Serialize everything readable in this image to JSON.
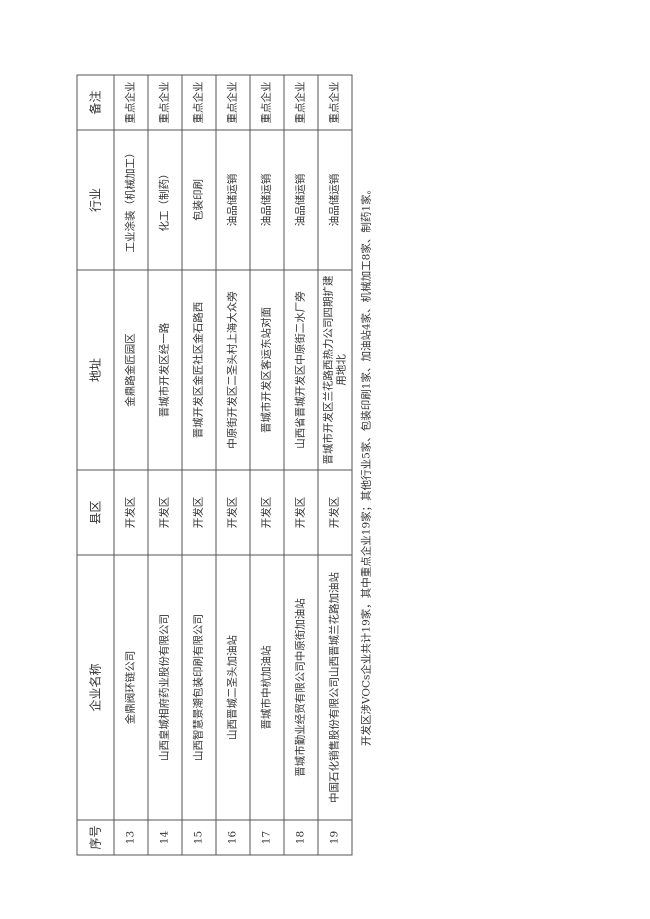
{
  "table": {
    "headers": [
      "序号",
      "企业名称",
      "县区",
      "地址",
      "行业",
      "备注"
    ],
    "rows": [
      [
        "13",
        "金鼎阀环链公司",
        "开发区",
        "金鼎路金匠园区",
        "工业涂装（机械加工）",
        "重点企业"
      ],
      [
        "14",
        "山西皇城相府药业股份有限公司",
        "开发区",
        "晋城市开发区经一路",
        "化工（制药）",
        "重点企业"
      ],
      [
        "15",
        "山西智慧景潮包装印刷有限公司",
        "开发区",
        "晋城开发区金匠社区金石路西",
        "包装印刷",
        "重点企业"
      ],
      [
        "16",
        "山西晋城二圣头加油站",
        "开发区",
        "中原街开发区二圣头村上海大众旁",
        "油品储运销",
        "重点企业"
      ],
      [
        "17",
        "晋城市中杭加油站",
        "开发区",
        "晋城市开发区客运东站对面",
        "油品储运销",
        "重点企业"
      ],
      [
        "18",
        "晋城市勤业经贸有限公司中原街加油站",
        "开发区",
        "山西省晋城开发区中原街二水厂旁",
        "油品储运销",
        "重点企业"
      ],
      [
        "19",
        "中国石化销售股份有限公司山西晋城兰花路加油站",
        "开发区",
        "晋城市开发区兰花路西热力公司四期扩建用地北",
        "油品储运销",
        "重点企业"
      ]
    ],
    "footer": "开发区涉VOCs企业共计19家，其中重点企业19家；其他行业5家、包装印刷1家、加油站4家、机械加工8家、制药1家。"
  }
}
